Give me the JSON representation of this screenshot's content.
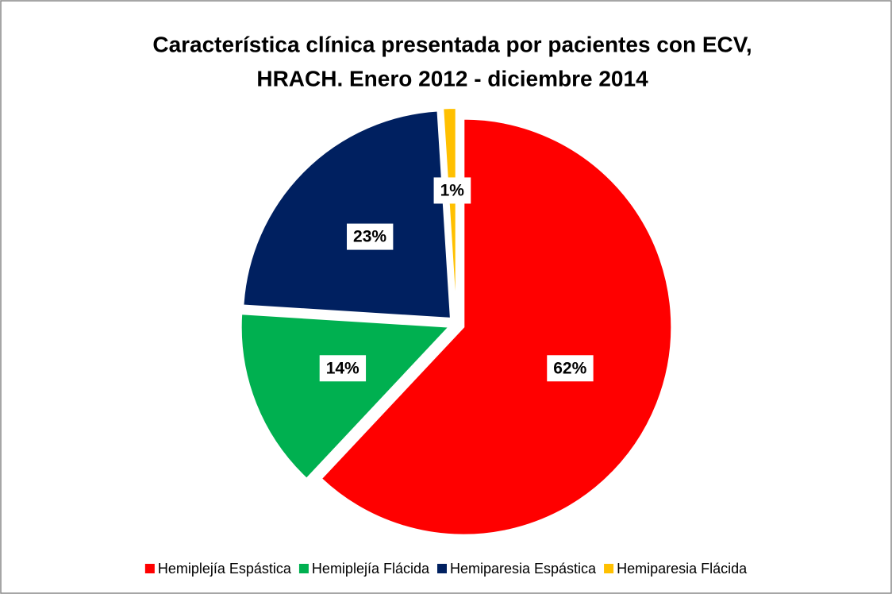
{
  "chart_data": {
    "type": "pie",
    "title": [
      "Característica clínica presentada por pacientes con ECV,",
      "HRACH. Enero 2012 - diciembre 2014"
    ],
    "categories": [
      "Hemiplejía Espástica",
      "Hemiplejía Flácida",
      "Hemiparesia Espástica",
      "Hemiparesia Flácida"
    ],
    "values": [
      62,
      14,
      23,
      1
    ],
    "value_labels": [
      "62%",
      "14%",
      "23%",
      "1%"
    ],
    "colors": [
      "#ff0000",
      "#00b050",
      "#002060",
      "#ffc000"
    ],
    "legend": "bottom"
  }
}
